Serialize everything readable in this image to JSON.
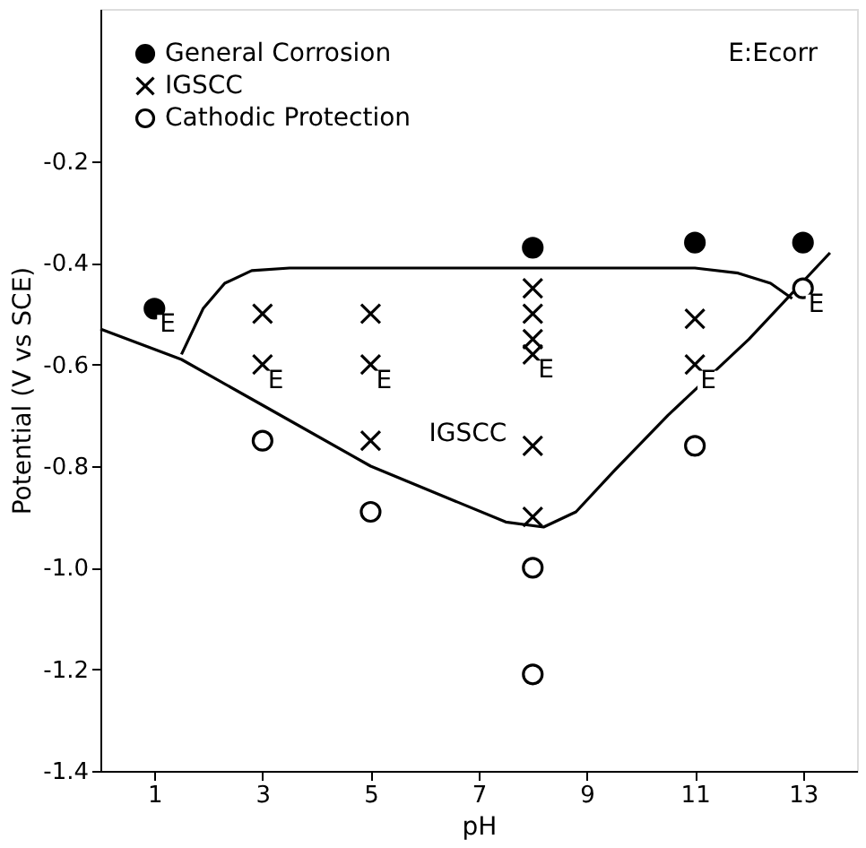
{
  "chart_data": {
    "type": "scatter",
    "xlabel": "pH",
    "ylabel": "Potential (V vs SCE)",
    "xlim": [
      0,
      14
    ],
    "xticks": [
      1,
      3,
      5,
      7,
      9,
      11,
      13
    ],
    "ylim": [
      -1.4,
      0.1
    ],
    "yticks": [
      -0.2,
      -0.4,
      -0.6,
      -0.8,
      {
        "value": -1.0,
        "label": "-1.0"
      },
      -1.2,
      -1.4
    ],
    "grid": false,
    "legend": "top left",
    "series": [
      {
        "name": "General Corrosion",
        "color": "#000000",
        "marker": "circle",
        "x": [
          1,
          8,
          11,
          13
        ],
        "values": [
          -0.49,
          -0.37,
          -0.36,
          -0.36
        ]
      },
      {
        "name": "IGSCC",
        "color": "#000000",
        "marker": "cross",
        "x": [
          3,
          3,
          5,
          5,
          5,
          8,
          8,
          8,
          8,
          8,
          8,
          11,
          11
        ],
        "values": [
          -0.5,
          -0.6,
          -0.5,
          -0.6,
          -0.75,
          -0.45,
          -0.5,
          -0.55,
          -0.58,
          -0.76,
          -0.9,
          -0.51,
          -0.6
        ]
      },
      {
        "name": "Cathodic Protection",
        "color": "#ffffff",
        "marker": "circle",
        "x": [
          3,
          5,
          8,
          8,
          11,
          13
        ],
        "values": [
          -0.75,
          -0.89,
          -1.0,
          -1.21,
          -0.76,
          -0.45
        ]
      },
      {
        "type": "line",
        "color": "#000000",
        "line_style": "solid",
        "x": [
          1.5,
          1.9,
          2.3,
          2.8,
          3.5,
          11,
          11.8,
          12.4,
          12.8
        ],
        "values": [
          -0.58,
          -0.49,
          -0.44,
          -0.415,
          -0.41,
          -0.41,
          -0.42,
          -0.44,
          -0.47
        ]
      },
      {
        "type": "line",
        "color": "#000000",
        "line_style": "solid",
        "x": [
          0,
          1.5,
          3,
          5,
          7.5,
          8.2,
          8.8,
          9.5,
          10.5,
          12,
          13.5
        ],
        "values": [
          -0.53,
          -0.59,
          -0.68,
          -0.8,
          -0.91,
          -0.92,
          -0.89,
          -0.81,
          -0.7,
          -0.55,
          -0.38
        ]
      }
    ],
    "annotations": [
      "IGSCC",
      "E:Ecorr",
      {
        "text": "E",
        "x": 1,
        "y": -0.49
      },
      {
        "text": "E",
        "x": 3,
        "y": -0.6
      },
      {
        "text": "E",
        "x": 5,
        "y": -0.6
      },
      {
        "text": "E",
        "x": 8,
        "y": -0.58
      },
      {
        "text": "E",
        "x": 11,
        "y": -0.6
      },
      {
        "text": "E",
        "x": 13,
        "y": -0.45
      }
    ]
  }
}
